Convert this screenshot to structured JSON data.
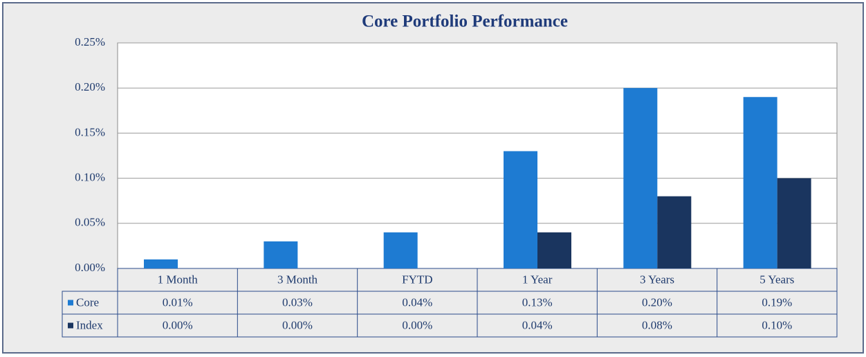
{
  "chart_data": {
    "type": "bar",
    "title": "Core Portfolio Performance",
    "categories": [
      "1 Month",
      "3 Month",
      "FYTD",
      "1 Year",
      "3 Years",
      "5 Years"
    ],
    "series": [
      {
        "name": "Core",
        "color": "#1e7bd2",
        "values": [
          0.01,
          0.03,
          0.04,
          0.13,
          0.2,
          0.19
        ],
        "value_labels": [
          "0.01%",
          "0.03%",
          "0.04%",
          "0.13%",
          "0.20%",
          "0.19%"
        ]
      },
      {
        "name": "Index",
        "color": "#1a355f",
        "values": [
          0.0,
          0.0,
          0.0,
          0.04,
          0.08,
          0.1
        ],
        "value_labels": [
          "0.00%",
          "0.00%",
          "0.00%",
          "0.04%",
          "0.08%",
          "0.10%"
        ]
      }
    ],
    "ylim": [
      0,
      0.25
    ],
    "yticks": [
      {
        "value": 0,
        "label": "0.00%"
      },
      {
        "value": 0.05,
        "label": "0.05%"
      },
      {
        "value": 0.1,
        "label": "0.10%"
      },
      {
        "value": 0.15,
        "label": "0.15%"
      },
      {
        "value": 0.2,
        "label": "0.20%"
      },
      {
        "value": 0.25,
        "label": "0.25%"
      }
    ],
    "grid": true
  }
}
